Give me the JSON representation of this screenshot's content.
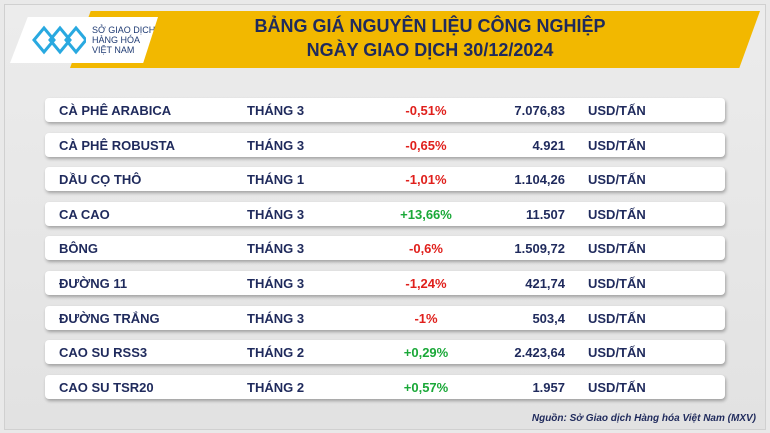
{
  "header": {
    "title_line1": "BẢNG GIÁ NGUYÊN LIỆU CÔNG NGHIỆP",
    "title_line2": "NGÀY GIAO DỊCH 30/12/2024",
    "logo_text": [
      "SỞ GIAO DỊCH",
      "HÀNG HÓA",
      "VIỆT NAM"
    ]
  },
  "colors": {
    "banner": "#f2b800",
    "text": "#1f2a5c",
    "negative": "#e0201c",
    "positive": "#1aa838"
  },
  "rows": [
    {
      "name": "CÀ PHÊ ARABICA",
      "month": "THÁNG 3",
      "change": "-0,51%",
      "price": "7.076,83",
      "unit": "USD/TẤN"
    },
    {
      "name": "CÀ PHÊ ROBUSTA",
      "month": "THÁNG 3",
      "change": "-0,65%",
      "price": "4.921",
      "unit": "USD/TẤN"
    },
    {
      "name": "DẦU CỌ THÔ",
      "month": "THÁNG 1",
      "change": "-1,01%",
      "price": "1.104,26",
      "unit": "USD/TẤN"
    },
    {
      "name": "CA CAO",
      "month": "THÁNG 3",
      "change": "+13,66%",
      "price": "11.507",
      "unit": "USD/TẤN"
    },
    {
      "name": "BÔNG",
      "month": "THÁNG 3",
      "change": "-0,6%",
      "price": "1.509,72",
      "unit": "USD/TẤN"
    },
    {
      "name": "ĐƯỜNG 11",
      "month": "THÁNG 3",
      "change": "-1,24%",
      "price": "421,74",
      "unit": "USD/TẤN"
    },
    {
      "name": "ĐƯỜNG TRẮNG",
      "month": "THÁNG 3",
      "change": "-1%",
      "price": "503,4",
      "unit": "USD/TẤN"
    },
    {
      "name": "CAO SU RSS3",
      "month": "THÁNG 2",
      "change": "+0,29%",
      "price": "2.423,64",
      "unit": "USD/TẤN"
    },
    {
      "name": "CAO SU TSR20",
      "month": "THÁNG 2",
      "change": "+0,57%",
      "price": "1.957",
      "unit": "USD/TẤN"
    }
  ],
  "source": "Nguồn: Sở Giao dịch Hàng hóa Việt Nam (MXV)"
}
